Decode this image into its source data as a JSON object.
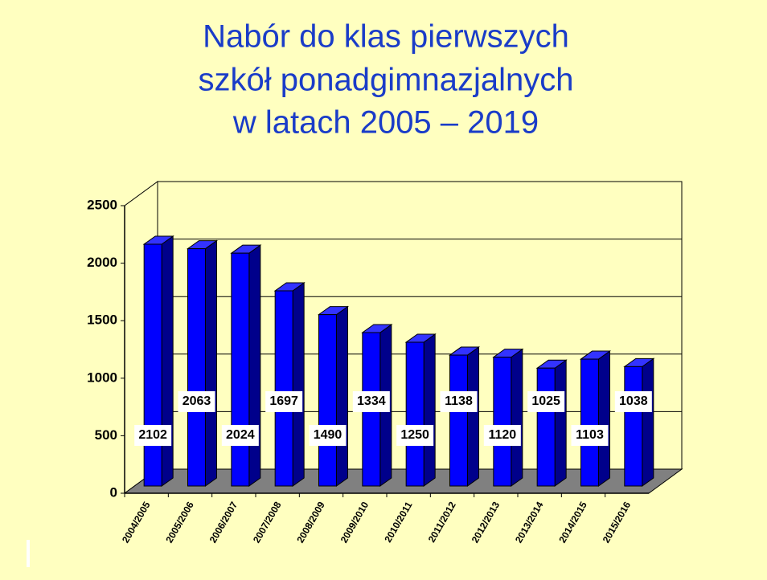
{
  "chart_data": {
    "type": "bar3d",
    "title": [
      "Nabór do klas pierwszych",
      "szkół ponadgimnazjalnych",
      "w latach 2005 – 2019"
    ],
    "categories": [
      "2004/2005",
      "2005/2006",
      "2006/2007",
      "2007/2008",
      "2008/2009",
      "2009/2010",
      "2010/2011",
      "2011/2012",
      "2012/2013",
      "2013/2014",
      "2014/2015",
      "2015/2016"
    ],
    "values": [
      2102,
      2063,
      2024,
      1697,
      1490,
      1334,
      1250,
      1138,
      1120,
      1025,
      1103,
      1038
    ],
    "color": "#0000ff",
    "ylim": [
      0,
      2500
    ],
    "yticks": [
      0,
      500,
      1000,
      1500,
      2000,
      2500
    ],
    "grid": true
  }
}
